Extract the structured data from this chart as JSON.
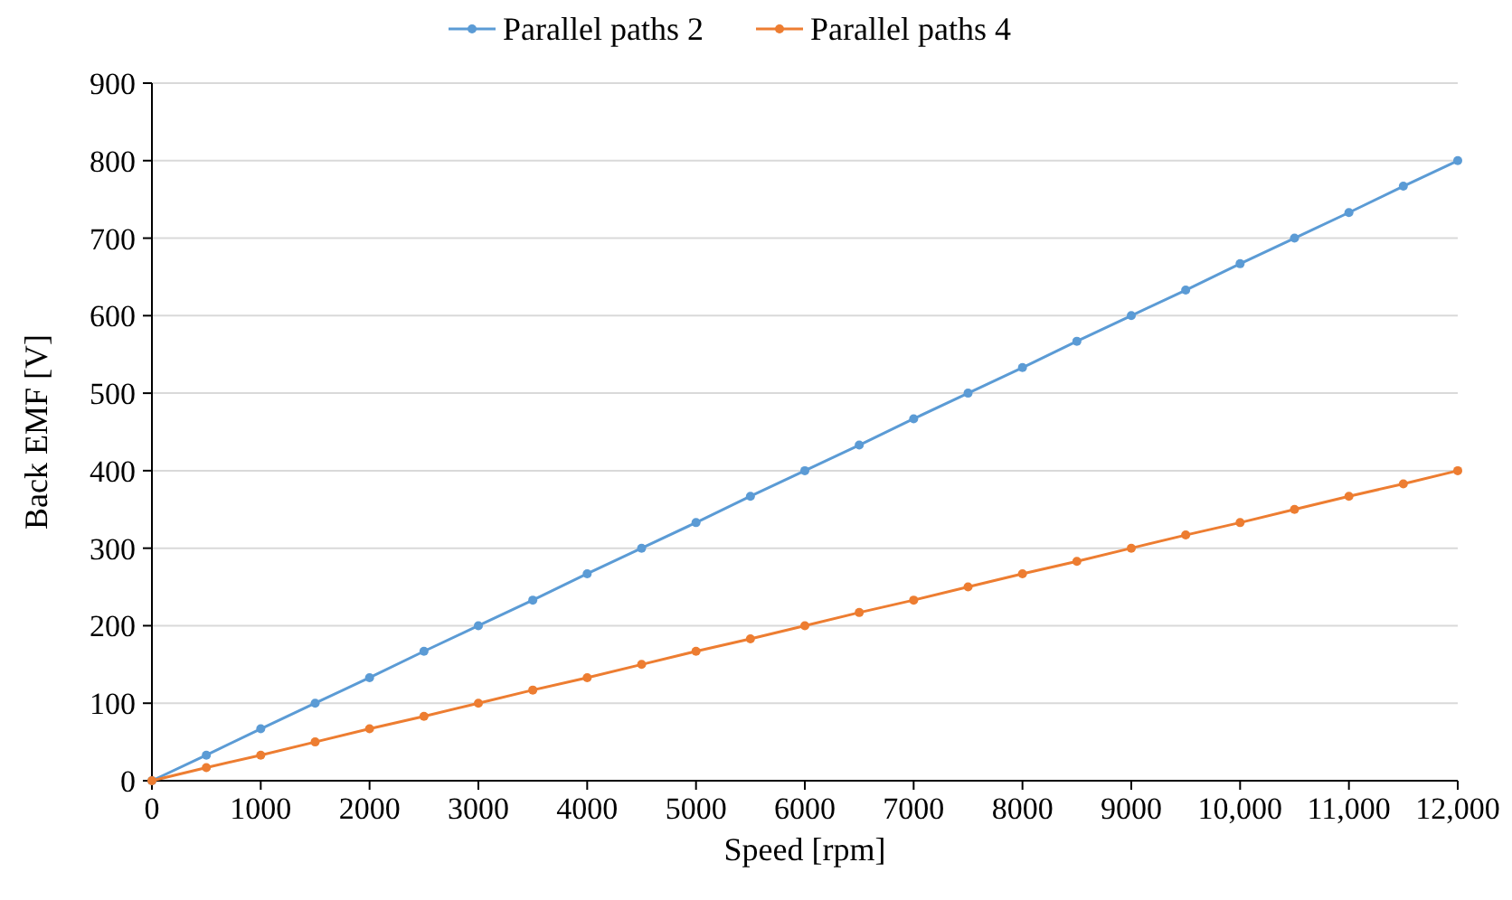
{
  "chart_data": {
    "type": "line",
    "xlabel": "Speed [rpm]",
    "ylabel": "Back EMF [V]",
    "x": [
      0,
      500,
      1000,
      1500,
      2000,
      2500,
      3000,
      3500,
      4000,
      4500,
      5000,
      5500,
      6000,
      6500,
      7000,
      7500,
      8000,
      8500,
      9000,
      9500,
      10000,
      10500,
      11000,
      11500,
      12000
    ],
    "series": [
      {
        "name": "Parallel paths 2",
        "color": "#5b9bd5",
        "values": [
          0,
          33,
          67,
          100,
          133,
          167,
          200,
          233,
          267,
          300,
          333,
          367,
          400,
          433,
          467,
          500,
          533,
          567,
          600,
          633,
          667,
          700,
          733,
          767,
          800
        ]
      },
      {
        "name": "Parallel paths 4",
        "color": "#ed7d31",
        "values": [
          0,
          17,
          33,
          50,
          67,
          83,
          100,
          117,
          133,
          150,
          167,
          183,
          200,
          217,
          233,
          250,
          267,
          283,
          300,
          317,
          333,
          350,
          367,
          383,
          400
        ]
      }
    ],
    "xlim": [
      0,
      12000
    ],
    "ylim": [
      0,
      900
    ],
    "xticks": [
      0,
      1000,
      2000,
      3000,
      4000,
      5000,
      6000,
      7000,
      8000,
      9000,
      {
        "value": 10000,
        "label": "10,000"
      },
      {
        "value": 11000,
        "label": "11,000"
      },
      {
        "value": 12000,
        "label": "12,000"
      }
    ],
    "yticks": [
      0,
      100,
      200,
      300,
      400,
      500,
      600,
      700,
      800,
      900
    ],
    "grid": "y",
    "legend": "top",
    "marker": "circle",
    "line_style": "solid"
  }
}
